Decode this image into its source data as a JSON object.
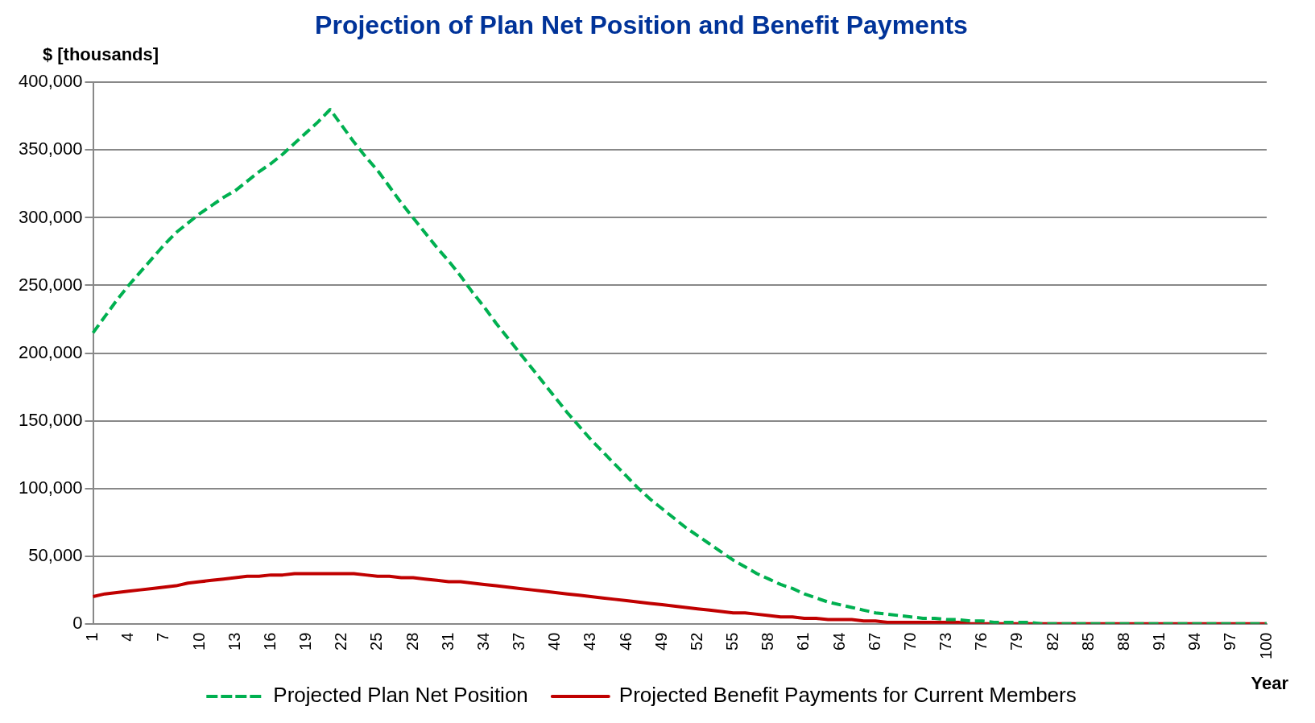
{
  "chart_data": {
    "type": "line",
    "title": "Projection of Plan Net Position and Benefit Payments",
    "ylabel": "$ [thousands]",
    "xlabel": "Year",
    "categories": [
      "1",
      null,
      null,
      "4",
      null,
      null,
      "7",
      null,
      null,
      "10",
      null,
      null,
      "13",
      null,
      null,
      "16",
      null,
      null,
      "19",
      null,
      null,
      "22",
      null,
      null,
      "25",
      null,
      null,
      "28",
      null,
      null,
      "31",
      null,
      null,
      "34",
      null,
      null,
      "37",
      null,
      null,
      "40",
      null,
      null,
      "43",
      null,
      null,
      "46",
      null,
      null,
      "49",
      null,
      null,
      "52",
      null,
      null,
      "55",
      null,
      null,
      "58",
      null,
      null,
      "61",
      null,
      null,
      "64",
      null,
      null,
      "67",
      null,
      null,
      "70",
      null,
      null,
      "73",
      null,
      null,
      "76",
      null,
      null,
      "79",
      null,
      null,
      "82",
      null,
      null,
      "85",
      null,
      null,
      "88",
      null,
      null,
      "91",
      null,
      null,
      "94",
      null,
      null,
      "97",
      null,
      null,
      "100"
    ],
    "series": [
      {
        "name": "Projected Plan Net Position",
        "color": "#00b050",
        "line_style": "dashed",
        "values": [
          215000,
          227000,
          239000,
          250000,
          260000,
          270000,
          280000,
          289000,
          296000,
          303000,
          309000,
          315000,
          320000,
          327000,
          334000,
          340000,
          347000,
          355000,
          363000,
          371000,
          380000,
          368000,
          356000,
          345000,
          335000,
          323000,
          311000,
          300000,
          289000,
          278000,
          268000,
          257000,
          245000,
          234000,
          222000,
          211000,
          200000,
          189000,
          178000,
          167000,
          156000,
          146000,
          136000,
          127000,
          118000,
          109000,
          100000,
          92000,
          85000,
          78000,
          71000,
          65000,
          59000,
          53000,
          47000,
          42000,
          37000,
          33000,
          29000,
          26000,
          22000,
          19000,
          16000,
          14000,
          12000,
          10000,
          8000,
          7000,
          6000,
          5000,
          4000,
          4000,
          3000,
          3000,
          2000,
          2000,
          1000,
          1000,
          1000,
          1000,
          0,
          0,
          0,
          0,
          0,
          0,
          0,
          0,
          0,
          0,
          0,
          0,
          0,
          0,
          0,
          0,
          0,
          0,
          0,
          0
        ]
      },
      {
        "name": "Projected Benefit Payments for Current Members",
        "color": "#c00000",
        "line_style": "solid",
        "values": [
          20000,
          22000,
          23000,
          24000,
          25000,
          26000,
          27000,
          28000,
          30000,
          31000,
          32000,
          33000,
          34000,
          35000,
          35000,
          36000,
          36000,
          37000,
          37000,
          37000,
          37000,
          37000,
          37000,
          36000,
          35000,
          35000,
          34000,
          34000,
          33000,
          32000,
          31000,
          31000,
          30000,
          29000,
          28000,
          27000,
          26000,
          25000,
          24000,
          23000,
          22000,
          21000,
          20000,
          19000,
          18000,
          17000,
          16000,
          15000,
          14000,
          13000,
          12000,
          11000,
          10000,
          9000,
          8000,
          8000,
          7000,
          6000,
          5000,
          5000,
          4000,
          4000,
          3000,
          3000,
          3000,
          2000,
          2000,
          1000,
          1000,
          1000,
          1000,
          1000,
          1000,
          1000,
          0,
          0,
          0,
          0,
          0,
          0,
          0,
          0,
          0,
          0,
          0,
          0,
          0,
          0,
          0,
          0,
          0,
          0,
          0,
          0,
          0,
          0,
          0,
          0,
          0,
          0
        ]
      }
    ],
    "ylim": [
      0,
      400000
    ],
    "yticks": [
      {
        "value": 0,
        "label": "0"
      },
      {
        "value": 50000,
        "label": "50,000"
      },
      {
        "value": 100000,
        "label": "100,000"
      },
      {
        "value": 150000,
        "label": "150,000"
      },
      {
        "value": 200000,
        "label": "200,000"
      },
      {
        "value": 250000,
        "label": "250,000"
      },
      {
        "value": 300000,
        "label": "300,000"
      },
      {
        "value": 350000,
        "label": "350,000"
      },
      {
        "value": 400000,
        "label": "400,000"
      }
    ],
    "grid": "y",
    "legend": "bottom",
    "marker": "none"
  }
}
